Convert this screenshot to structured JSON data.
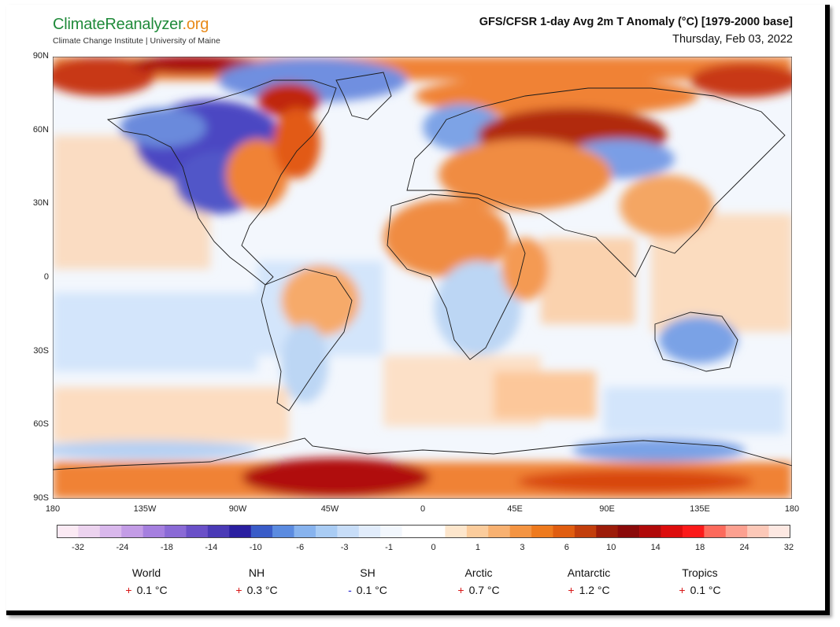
{
  "header": {
    "logo_climate": "Climate",
    "logo_reanalyzer": "Reanalyzer",
    "logo_org": ".org",
    "logo_subtitle": "Climate Change Institute | University of Maine",
    "title": "GFS/CFSR 1-day Avg 2m T Anomaly (°C) [1979-2000 base]",
    "date": "Thursday, Feb 03, 2022"
  },
  "map": {
    "lat_labels": [
      "90N",
      "60N",
      "30N",
      "0",
      "30S",
      "60S",
      "90S"
    ],
    "lon_labels": [
      "180",
      "135W",
      "90W",
      "45W",
      "0",
      "45E",
      "90E",
      "135E",
      "180"
    ],
    "colors": {
      "ocean_warm": "#fbe3cf",
      "ocean_cool": "#d8e8fb",
      "warm": "#f6a55a",
      "hot": "#e6620e",
      "very_hot": "#b01010",
      "cool": "#9cc3ee",
      "cold": "#5b7fd9",
      "very_cold": "#3a3fb8",
      "coast": "#1a1a1a"
    }
  },
  "scale": {
    "labels": [
      "-32",
      "-24",
      "-18",
      "-14",
      "-10",
      "-6",
      "-3",
      "-1",
      "0",
      "1",
      "3",
      "6",
      "10",
      "14",
      "18",
      "24",
      "32"
    ],
    "colors": [
      "#fbeaf4",
      "#ecd3ef",
      "#d9b8ec",
      "#c39ce6",
      "#a57fdf",
      "#8a6ad6",
      "#6a50c8",
      "#4a3ab6",
      "#2a1fa0",
      "#3a5cc8",
      "#5b8be0",
      "#87b3ee",
      "#a9ccf4",
      "#c7ddf8",
      "#e1ecfb",
      "#f2f7fd",
      "#ffffff",
      "#ffffff",
      "#fde6cc",
      "#fbcc9c",
      "#f8b171",
      "#f49442",
      "#ee7a1e",
      "#e05d10",
      "#c23e0c",
      "#9c1c0a",
      "#8a0a0a",
      "#b00a0a",
      "#dc0d0d",
      "#fb1a1a",
      "#fc6a5c",
      "#fca090",
      "#fcc8b8",
      "#fde8e2"
    ]
  },
  "summary": [
    {
      "name": "World",
      "sign": "+",
      "value": "0.1 °C"
    },
    {
      "name": "NH",
      "sign": "+",
      "value": "0.3 °C"
    },
    {
      "name": "SH",
      "sign": "-",
      "value": "0.1 °C"
    },
    {
      "name": "Arctic",
      "sign": "+",
      "value": "0.7 °C"
    },
    {
      "name": "Antarctic",
      "sign": "+",
      "value": "1.2 °C"
    },
    {
      "name": "Tropics",
      "sign": "+",
      "value": "0.1 °C"
    }
  ]
}
